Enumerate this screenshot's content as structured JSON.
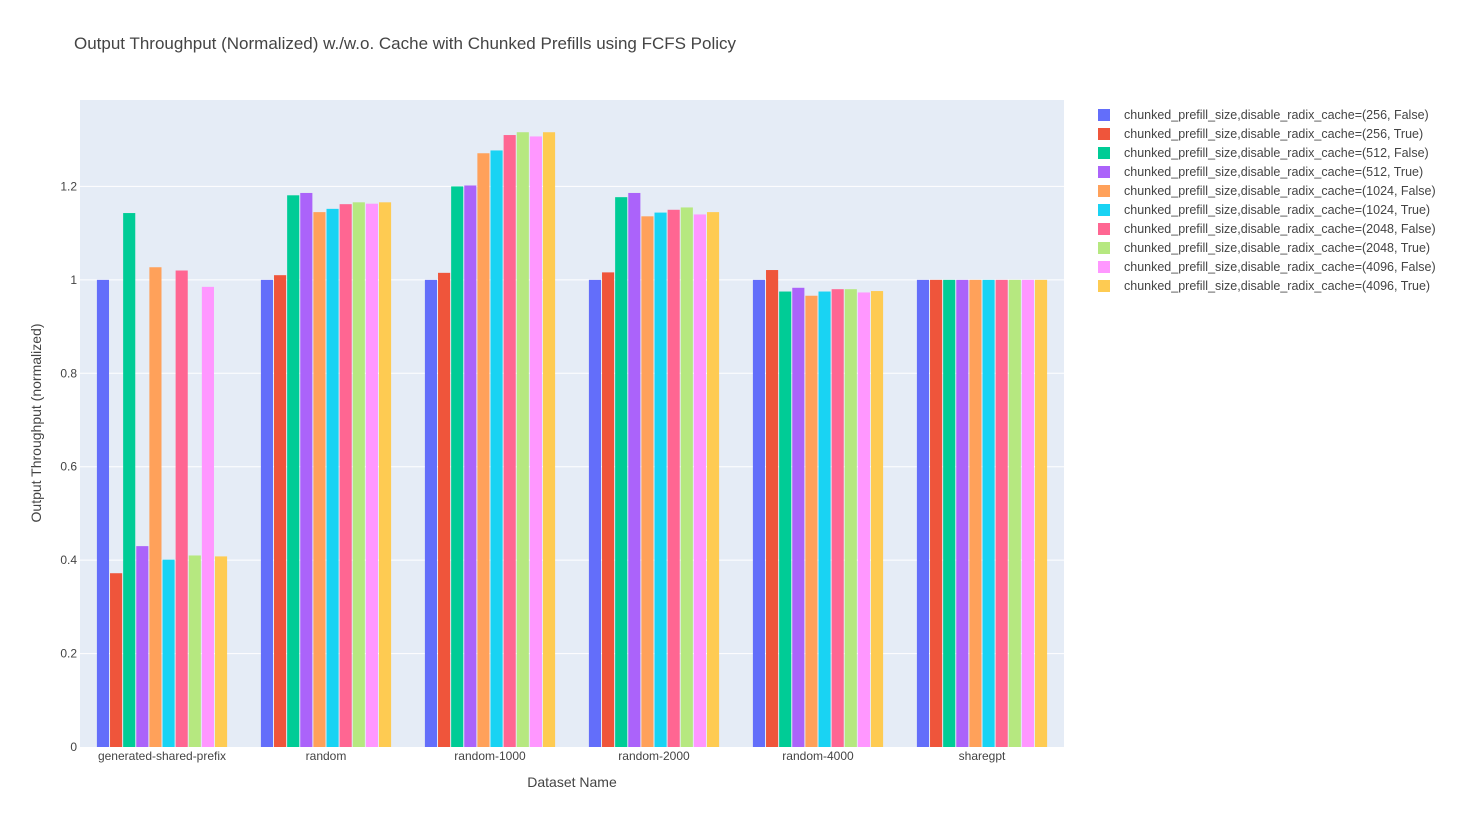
{
  "chart_data": {
    "type": "bar",
    "title": "Output Throughput (Normalized) w./w.o. Cache with Chunked Prefills using FCFS Policy",
    "xlabel": "Dataset Name",
    "ylabel": "Output Throughput (normalized)",
    "ylim": [
      0,
      1.385
    ],
    "yticks": [
      0,
      0.2,
      0.4,
      0.6,
      0.8,
      1,
      1.2
    ],
    "ytick_labels": [
      "0",
      "0.2",
      "0.4",
      "0.6",
      "0.8",
      "1",
      "1.2"
    ],
    "grid": true,
    "legend_position": "right",
    "categories": [
      "generated-shared-prefix",
      "random",
      "random-1000",
      "random-2000",
      "random-4000",
      "sharegpt"
    ],
    "series": [
      {
        "name": "chunked_prefill_size,disable_radix_cache=(256, False)",
        "color": "#636efa",
        "values": [
          1.0,
          1.0,
          1.0,
          1.0,
          1.0,
          1.0
        ]
      },
      {
        "name": "chunked_prefill_size,disable_radix_cache=(256, True)",
        "color": "#ef553b",
        "values": [
          0.372,
          1.01,
          1.015,
          1.016,
          1.021,
          1.0
        ]
      },
      {
        "name": "chunked_prefill_size,disable_radix_cache=(512, False)",
        "color": "#00cc96",
        "values": [
          1.143,
          1.181,
          1.2,
          1.177,
          0.975,
          1.0
        ]
      },
      {
        "name": "chunked_prefill_size,disable_radix_cache=(512, True)",
        "color": "#ab63fa",
        "values": [
          0.43,
          1.186,
          1.202,
          1.186,
          0.983,
          1.0
        ]
      },
      {
        "name": "chunked_prefill_size,disable_radix_cache=(1024, False)",
        "color": "#ffa15a",
        "values": [
          1.027,
          1.145,
          1.271,
          1.136,
          0.966,
          1.0
        ]
      },
      {
        "name": "chunked_prefill_size,disable_radix_cache=(1024, True)",
        "color": "#19d3f3",
        "values": [
          0.401,
          1.152,
          1.277,
          1.144,
          0.975,
          1.0
        ]
      },
      {
        "name": "chunked_prefill_size,disable_radix_cache=(2048, False)",
        "color": "#ff6692",
        "values": [
          1.02,
          1.162,
          1.31,
          1.15,
          0.98,
          1.0
        ]
      },
      {
        "name": "chunked_prefill_size,disable_radix_cache=(2048, True)",
        "color": "#b6e880",
        "values": [
          0.41,
          1.166,
          1.316,
          1.155,
          0.98,
          1.0
        ]
      },
      {
        "name": "chunked_prefill_size,disable_radix_cache=(4096, False)",
        "color": "#ff97ff",
        "values": [
          0.985,
          1.163,
          1.307,
          1.14,
          0.973,
          1.0
        ]
      },
      {
        "name": "chunked_prefill_size,disable_radix_cache=(4096, True)",
        "color": "#fecb52",
        "values": [
          0.408,
          1.166,
          1.316,
          1.145,
          0.976,
          1.0
        ]
      }
    ]
  }
}
